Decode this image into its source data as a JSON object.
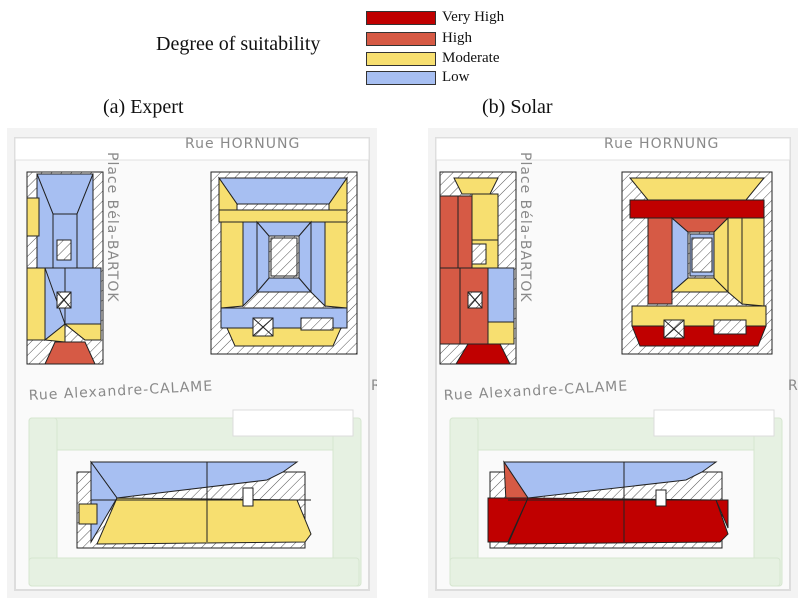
{
  "legend": {
    "title": "Degree of suitability",
    "items": [
      {
        "label": "Very High",
        "color": "#c00000"
      },
      {
        "label": "High",
        "color": "#d65a45"
      },
      {
        "label": "Moderate",
        "color": "#f7df70"
      },
      {
        "label": "Low",
        "color": "#a7bff2"
      }
    ]
  },
  "panels": [
    {
      "caption": "(a) Expert"
    },
    {
      "caption": "(b) Solar"
    }
  ],
  "streets": {
    "hornung": "Rue HORNUNG",
    "bartok": "Place Béla-BARTOK",
    "calame": "Rue Alexandre-CALAME",
    "edge": "Ru"
  },
  "colors": {
    "very_high": "#c00000",
    "high": "#d65a45",
    "moderate": "#f7df70",
    "low": "#a7bff2",
    "hatch": "#555555",
    "street_fill": "#f2f2f2",
    "green": "#e4f0e0"
  }
}
